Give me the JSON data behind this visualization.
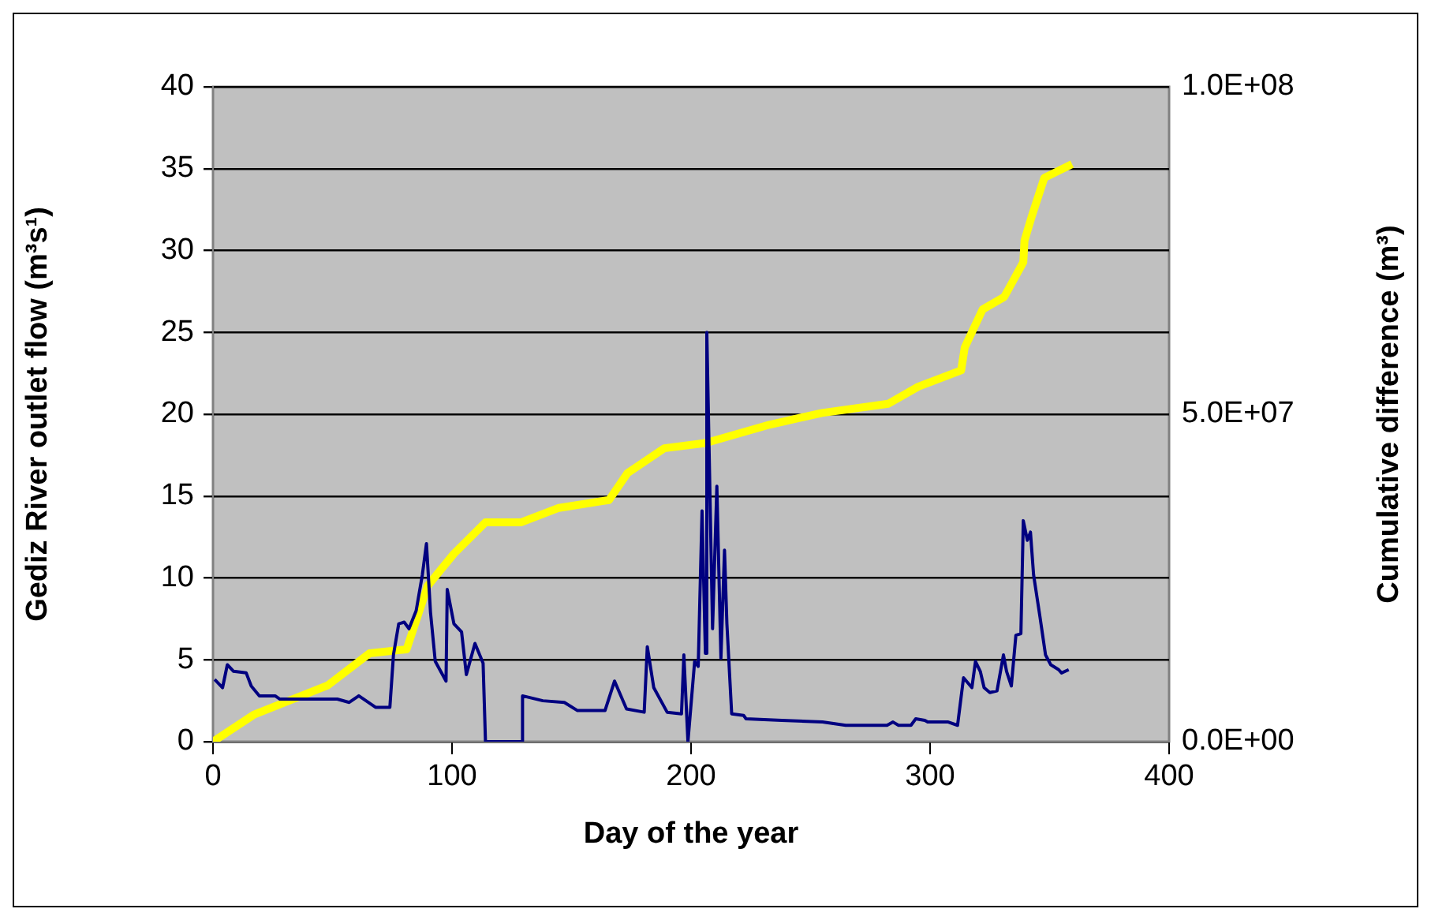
{
  "chart_data": {
    "type": "line",
    "xlabel": "Day of the year",
    "ylabel": "Gediz River outlet flow (m³s¹)",
    "y2label": "Cumulative difference (m³)",
    "xlim": [
      0,
      400
    ],
    "xticks": [
      0,
      100,
      200,
      300,
      400
    ],
    "ylim": [
      0,
      40
    ],
    "yticks": [
      0,
      5,
      10,
      15,
      20,
      25,
      30,
      35,
      40
    ],
    "y2lim": [
      0,
      100000000
    ],
    "y2ticks": [
      {
        "value": 0,
        "label": "0.0E+00"
      },
      {
        "value": 50000000,
        "label": "5.0E+07"
      },
      {
        "value": 100000000,
        "label": "1.0E+08"
      }
    ],
    "grid": "y",
    "legend": false,
    "marker": "none",
    "line_style": "solid",
    "series": [
      {
        "color": "#000080",
        "x": [
          0.7,
          4,
          6,
          8.6,
          13.9,
          16,
          19.4,
          26,
          28,
          48,
          52,
          57,
          61,
          68,
          74,
          75.5,
          77.7,
          80,
          82,
          85,
          87.6,
          89.3,
          91,
          93,
          97.5,
          98,
          100.8,
          104,
          106,
          109.6,
          113,
          114,
          124,
          129.4,
          129.5,
          138,
          147,
          152.5,
          164,
          168,
          173,
          180.4,
          181.7,
          184.4,
          190,
          196,
          197,
          198.7,
          201.5,
          203,
          204.6,
          206,
          206.6,
          209,
          210.8,
          212.5,
          214,
          215,
          217,
          222,
          223,
          238,
          255,
          264.7,
          282,
          284.5,
          286.8,
          292,
          294,
          297.8,
          299,
          307.6,
          311.5,
          314,
          317.5,
          319,
          321,
          322.6,
          325,
          328,
          330.7,
          332,
          334,
          335.9,
          338,
          339,
          340.7,
          342,
          343.3,
          346,
          348.3,
          350.5,
          353.8,
          355,
          358
        ],
        "values": [
          3.8,
          3.3,
          4.7,
          4.3,
          4.2,
          3.4,
          2.8,
          2.8,
          2.6,
          2.6,
          2.6,
          2.4,
          2.8,
          2.1,
          2.1,
          5.3,
          7.2,
          7.3,
          6.9,
          8.0,
          10.2,
          12.1,
          7.9,
          4.9,
          3.7,
          9.3,
          7.2,
          6.7,
          4.1,
          6.0,
          4.8,
          0,
          0,
          0,
          2.8,
          2.5,
          2.4,
          1.9,
          1.9,
          3.7,
          2.0,
          1.8,
          5.8,
          3.3,
          1.8,
          1.7,
          5.3,
          0,
          4.9,
          4.6,
          14.1,
          5.4,
          25,
          6.9,
          15.6,
          5.1,
          11.7,
          7.2,
          1.7,
          1.6,
          1.4,
          1.3,
          1.2,
          1.0,
          1.0,
          1.2,
          1.0,
          1.0,
          1.4,
          1.3,
          1.2,
          1.2,
          1.0,
          3.9,
          3.3,
          4.9,
          4.3,
          3.3,
          3.0,
          3.1,
          5.3,
          4.3,
          3.4,
          6.5,
          6.6,
          13.5,
          12.3,
          12.8,
          10.2,
          7.6,
          5.3,
          4.7,
          4.4,
          4.2,
          4.4
        ]
      },
      {
        "color": "#ffff00",
        "axis": "y2",
        "x": [
          0,
          17,
          48,
          65.5,
          81,
          89.8,
          100.8,
          114,
          129,
          144.7,
          165.7,
          173.4,
          188.8,
          206,
          232.8,
          254.8,
          282.5,
          295,
          313,
          314.5,
          322,
          331,
          339,
          339.5,
          342.7,
          347.8,
          359.4
        ],
        "values": [
          0,
          4100000,
          8600000,
          13500000,
          14100000,
          23800000,
          28700000,
          33500000,
          33500000,
          35700000,
          36900000,
          41000000,
          44800000,
          45600000,
          48400000,
          50200000,
          51600000,
          54200000,
          56700000,
          60200000,
          66000000,
          67900000,
          73200000,
          76500000,
          80400000,
          86100000,
          88200000
        ]
      }
    ]
  }
}
